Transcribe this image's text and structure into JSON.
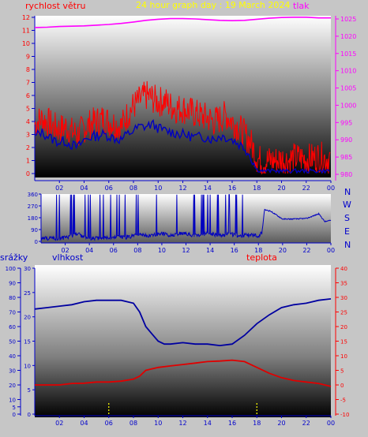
{
  "header": {
    "left_label": "rychlost větru",
    "title": "24 hour graph day : 19 March 2024",
    "right_label": "tlak"
  },
  "middle": {
    "compass": [
      "N",
      "W",
      "S",
      "E",
      "N"
    ]
  },
  "bottom_header": {
    "left_label": "srážky",
    "mid_label": "vlhkost",
    "right_label": "teplota"
  },
  "colors": {
    "wind": "#ff0000",
    "wind_gust_avg": "#0000c0",
    "pressure": "#ff00ff",
    "direction": "#0000c0",
    "humidity": "#0000a0",
    "temperature": "#e00000",
    "rain": "#ffff00",
    "left_axis": "#0000cc",
    "right_axis": "#ff00ff",
    "title": "#ffff00"
  },
  "chart_data": [
    {
      "type": "line",
      "x_tick_labels": [
        "02",
        "04",
        "06",
        "08",
        "10",
        "12",
        "14",
        "16",
        "18",
        "20",
        "22",
        "00"
      ],
      "left_axis": {
        "label": "rychlost větru",
        "ylim": [
          0,
          12
        ],
        "ticks": [
          "0",
          "1",
          "2",
          "3",
          "4",
          "5",
          "6",
          "7",
          "8",
          "9",
          "10",
          "11",
          "12"
        ]
      },
      "right_axis": {
        "label": "tlak",
        "ylim": [
          980,
          1025
        ],
        "ticks": [
          "980",
          "985",
          "990",
          "995",
          "1000",
          "1005",
          "1010",
          "1015",
          "1020",
          "1025"
        ]
      },
      "series": [
        {
          "axis": "left",
          "x": [
            0,
            0.5,
            1,
            1.5,
            2,
            2.5,
            3,
            3.5,
            4,
            4.5,
            5,
            5.5,
            6,
            6.5,
            7,
            7.5,
            8,
            8.5,
            9,
            9.5,
            10,
            10.5,
            11,
            11.5,
            12,
            12.5,
            13,
            13.5,
            14,
            14.5,
            15,
            15.5,
            16,
            16.5,
            17,
            17.5,
            18,
            18.5,
            19,
            19.5,
            20,
            20.5,
            21,
            21.5,
            22,
            22.5,
            23,
            23.5,
            24
          ],
          "values": [
            3.8,
            4.2,
            4.0,
            3.6,
            3.4,
            3.6,
            3.2,
            3.0,
            3.5,
            3.8,
            4.0,
            4.2,
            4.0,
            3.8,
            3.6,
            4.5,
            5.2,
            5.6,
            6.0,
            5.8,
            5.5,
            5.6,
            5.2,
            5.0,
            5.0,
            4.8,
            4.6,
            4.4,
            4.3,
            4.0,
            4.2,
            4.5,
            4.0,
            3.6,
            3.0,
            2.4,
            1.2,
            0.9,
            1.0,
            1.0,
            1.1,
            1.0,
            1.2,
            1.2,
            1.1,
            1.2,
            1.3,
            1.2,
            1.1
          ]
        },
        {
          "axis": "left",
          "x": [
            0,
            0.5,
            1,
            1.5,
            2,
            2.5,
            3,
            3.5,
            4,
            4.5,
            5,
            5.5,
            6,
            6.5,
            7,
            7.5,
            8,
            8.5,
            9,
            9.5,
            10,
            10.5,
            11,
            11.5,
            12,
            12.5,
            13,
            13.5,
            14,
            14.5,
            15,
            15.5,
            16,
            16.5,
            17,
            17.5,
            18,
            18.5,
            19,
            19.5,
            20,
            20.5,
            21,
            21.5,
            22,
            22.5,
            23,
            23.5,
            24
          ],
          "values": [
            2.8,
            3.2,
            2.9,
            2.6,
            2.4,
            2.5,
            2.2,
            2.0,
            2.6,
            2.8,
            2.9,
            3.0,
            2.9,
            2.7,
            2.6,
            3.0,
            3.3,
            3.6,
            3.6,
            3.8,
            3.5,
            3.3,
            3.2,
            3.1,
            3.0,
            2.9,
            2.8,
            2.8,
            2.8,
            2.6,
            2.9,
            2.8,
            2.6,
            2.3,
            2.0,
            1.3,
            0.3,
            0.2,
            0.2,
            0.2,
            0.2,
            0.2,
            0.2,
            0.2,
            0.2,
            0.2,
            0.2,
            0.2,
            0.2
          ]
        },
        {
          "axis": "right",
          "x": [
            0,
            1,
            2,
            3,
            4,
            5,
            6,
            7,
            8,
            9,
            10,
            11,
            12,
            13,
            14,
            15,
            16,
            17,
            18,
            19,
            20,
            21,
            22,
            23,
            24
          ],
          "values": [
            1022.5,
            1022.6,
            1022.8,
            1022.9,
            1023.0,
            1023.2,
            1023.4,
            1023.7,
            1024.1,
            1024.6,
            1024.9,
            1025.1,
            1025.1,
            1025.0,
            1024.8,
            1024.6,
            1024.5,
            1024.6,
            1024.9,
            1025.2,
            1025.4,
            1025.5,
            1025.5,
            1025.3,
            1025.3
          ]
        }
      ]
    },
    {
      "type": "line",
      "x_tick_labels": [
        "02",
        "04",
        "06",
        "08",
        "10",
        "12",
        "14",
        "16",
        "18",
        "20",
        "22",
        "00"
      ],
      "y_axis": {
        "ylim": [
          0,
          360
        ],
        "ticks": [
          "0",
          "90",
          "180",
          "270",
          "360"
        ]
      },
      "series": [
        {
          "axis": "left",
          "x": [
            0,
            1,
            1.5,
            2,
            2.5,
            3,
            3.5,
            4,
            4.5,
            5,
            5.5,
            6,
            6.5,
            7,
            7.5,
            8,
            8.5,
            9,
            9.5,
            10,
            10.5,
            11,
            11.5,
            12,
            12.5,
            13,
            13.5,
            14,
            14.5,
            15,
            15.5,
            16,
            16.5,
            17,
            17.5,
            18,
            18.3,
            18.5,
            19,
            20,
            21,
            22,
            23,
            23.5,
            24
          ],
          "values": [
            20,
            25,
            22,
            30,
            40,
            60,
            35,
            20,
            25,
            20,
            25,
            30,
            35,
            30,
            40,
            45,
            50,
            40,
            55,
            60,
            50,
            45,
            60,
            55,
            50,
            45,
            55,
            60,
            50,
            45,
            55,
            50,
            40,
            50,
            45,
            40,
            70,
            240,
            230,
            170,
            170,
            175,
            210,
            150,
            160
          ]
        }
      ]
    },
    {
      "type": "line",
      "x_tick_labels": [
        "02",
        "04",
        "06",
        "08",
        "10",
        "12",
        "14",
        "16",
        "18",
        "20",
        "22",
        "00"
      ],
      "left_axis": {
        "label": "srážky",
        "ylim": [
          0,
          100
        ],
        "ticks": [
          "0",
          "5",
          "10",
          "20",
          "30",
          "40",
          "50",
          "60",
          "70",
          "80",
          "90",
          "100"
        ]
      },
      "mid_axis": {
        "label": "vlhkost",
        "ylim": [
          0,
          30
        ],
        "ticks": [
          "0",
          "5",
          "10",
          "15",
          "20",
          "25",
          "30"
        ]
      },
      "right_axis": {
        "label": "teplota",
        "ylim": [
          -10,
          40
        ],
        "ticks": [
          "-10",
          "-5",
          "0",
          "5",
          "10",
          "15",
          "20",
          "25",
          "30",
          "35",
          "40"
        ]
      },
      "series": [
        {
          "axis": "left",
          "x": [
            0,
            1,
            2,
            3,
            4,
            5,
            6,
            7,
            8,
            8.5,
            9,
            9.5,
            10,
            10.5,
            11,
            12,
            13,
            14,
            15,
            16,
            17,
            18,
            19,
            20,
            21,
            22,
            23,
            24
          ],
          "values": [
            72,
            73,
            74,
            75,
            77,
            78,
            78,
            78,
            76,
            70,
            60,
            55,
            50,
            48,
            48,
            49,
            48,
            48,
            47,
            48,
            54,
            62,
            68,
            73,
            75,
            76,
            78,
            79
          ]
        },
        {
          "axis": "right",
          "x": [
            0,
            1,
            2,
            3,
            4,
            5,
            6,
            7,
            8,
            8.5,
            9,
            10,
            11,
            12,
            13,
            14,
            15,
            16,
            17,
            18,
            19,
            20,
            21,
            22,
            23,
            24
          ],
          "values": [
            0,
            0,
            0,
            0.5,
            0.6,
            1,
            1,
            1.3,
            2,
            3,
            5,
            6,
            6.5,
            7,
            7.5,
            8,
            8.2,
            8.5,
            8.0,
            6,
            4,
            2.5,
            1.5,
            1,
            0.5,
            -0.5
          ]
        },
        {
          "axis": "left",
          "x": [
            6,
            18
          ],
          "values": [
            1,
            1
          ]
        }
      ]
    }
  ]
}
